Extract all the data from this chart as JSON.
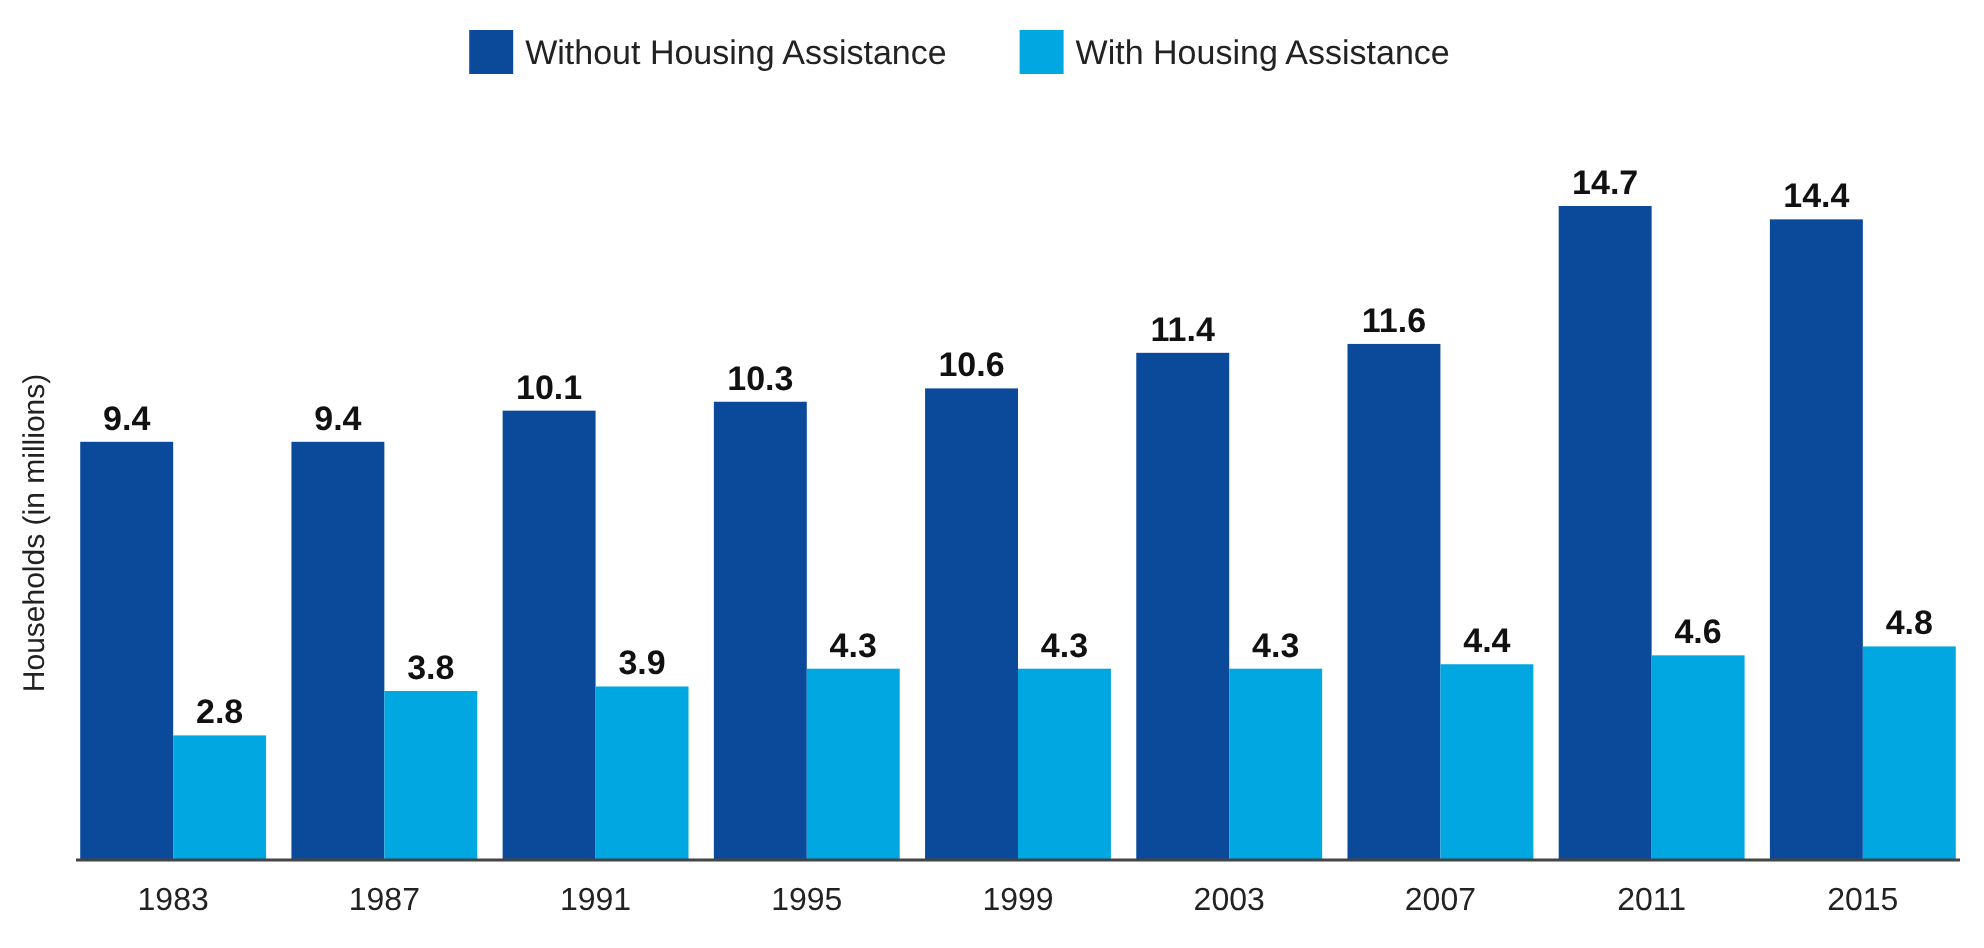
{
  "chart_data": {
    "type": "bar",
    "ylabel": "Households (in millions)",
    "categories": [
      "1983",
      "1987",
      "1991",
      "1995",
      "1999",
      "2003",
      "2007",
      "2011",
      "2015"
    ],
    "series": [
      {
        "name": "Without Housing Assistance",
        "color": "#0b4a9b",
        "values": [
          9.4,
          9.4,
          10.1,
          10.3,
          10.6,
          11.4,
          11.6,
          14.7,
          14.4
        ]
      },
      {
        "name": "With Housing Assistance",
        "color": "#00a7e1",
        "values": [
          2.8,
          3.8,
          3.9,
          4.3,
          4.3,
          4.3,
          4.4,
          4.6,
          4.8
        ]
      }
    ],
    "data_labels": true,
    "legend": "top",
    "grid": false
  }
}
